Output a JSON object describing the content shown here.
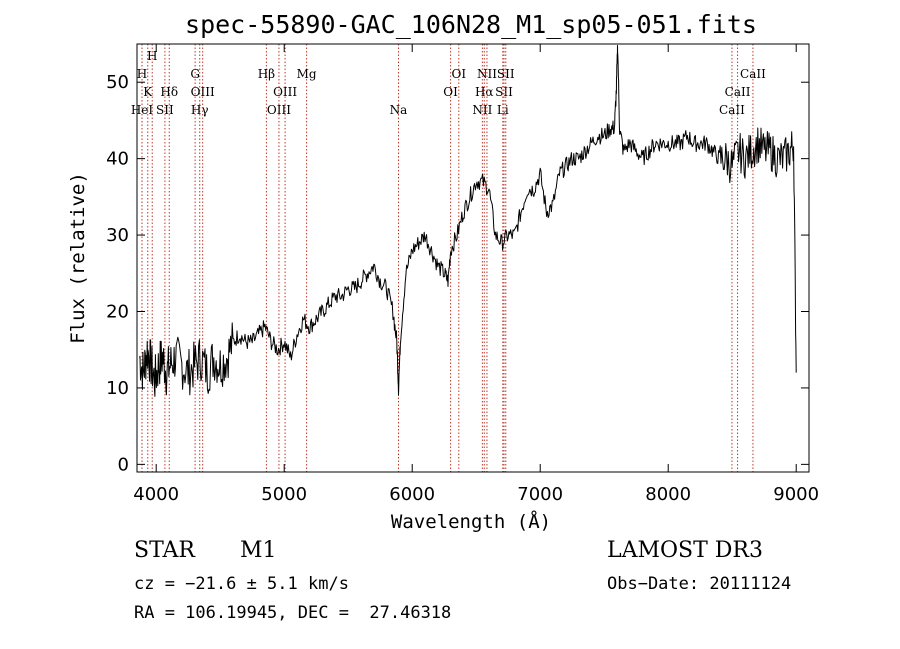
{
  "chart_data": {
    "type": "line",
    "title": "spec-55890-GAC_106N28_M1_sp05-051.fits",
    "xlabel": "Wavelength (Å)",
    "ylabel": "Flux (relative)",
    "xlim": [
      3850,
      9100
    ],
    "ylim": [
      -1,
      55
    ],
    "x_ticks": [
      4000,
      5000,
      6000,
      7000,
      8000,
      9000
    ],
    "y_ticks": [
      0,
      10,
      20,
      30,
      40,
      50
    ],
    "series": [
      {
        "name": "flux",
        "x": [
          3870,
          3900,
          3930,
          3960,
          3990,
          4020,
          4050,
          4080,
          4110,
          4150,
          4200,
          4250,
          4300,
          4350,
          4400,
          4450,
          4500,
          4550,
          4600,
          4650,
          4700,
          4750,
          4800,
          4850,
          4900,
          4950,
          5000,
          5050,
          5100,
          5150,
          5200,
          5250,
          5300,
          5350,
          5400,
          5450,
          5500,
          5550,
          5600,
          5650,
          5700,
          5750,
          5800,
          5850,
          5880,
          5893,
          5910,
          5950,
          6000,
          6050,
          6100,
          6150,
          6200,
          6250,
          6280,
          6300,
          6350,
          6400,
          6450,
          6500,
          6550,
          6600,
          6650,
          6700,
          6750,
          6800,
          6850,
          6900,
          6950,
          7000,
          7050,
          7100,
          7150,
          7200,
          7250,
          7300,
          7350,
          7400,
          7450,
          7500,
          7550,
          7580,
          7595,
          7605,
          7620,
          7650,
          7700,
          7750,
          7800,
          7850,
          7900,
          7950,
          8000,
          8050,
          8100,
          8150,
          8200,
          8250,
          8300,
          8350,
          8400,
          8450,
          8500,
          8550,
          8600,
          8650,
          8700,
          8750,
          8800,
          8850,
          8900,
          8950,
          8980,
          9000
        ],
        "y": [
          14,
          12,
          15,
          13,
          11,
          13,
          14,
          12,
          13,
          14,
          13,
          12,
          13,
          14,
          12,
          14,
          13,
          14,
          16,
          17,
          16,
          16,
          17,
          18,
          16,
          15,
          16,
          14,
          17,
          19,
          18,
          19,
          20,
          21,
          22,
          22,
          23,
          23,
          24,
          25,
          26,
          24,
          23,
          20,
          16,
          10,
          17,
          25,
          28,
          29,
          30,
          28,
          26,
          25,
          24,
          28,
          30,
          33,
          35,
          37,
          37,
          36,
          30,
          29,
          30,
          30,
          33,
          36,
          36,
          38,
          33,
          34,
          38,
          39,
          40,
          40,
          41,
          42,
          43,
          43,
          44,
          44,
          49,
          55,
          44,
          41,
          42,
          41,
          40,
          41,
          42,
          42,
          42,
          42,
          42,
          43,
          42,
          42,
          42,
          41,
          40,
          40,
          39,
          41,
          40,
          41,
          42,
          41,
          41,
          40,
          40,
          41,
          42,
          12
        ]
      }
    ],
    "line_markers": [
      {
        "wl": 3889,
        "labels": [
          {
            "text": "H",
            "row": 1
          }
        ]
      },
      {
        "wl": 3934,
        "labels": [
          {
            "text": "K",
            "row": 2
          }
        ]
      },
      {
        "wl": 3969,
        "labels": [
          {
            "text": "H",
            "row": 0
          }
        ]
      },
      {
        "wl": 3889,
        "labels": [
          {
            "text": "HeI",
            "row": 3
          }
        ]
      },
      {
        "wl": 4068,
        "labels": [
          {
            "text": "SII",
            "row": 3
          }
        ]
      },
      {
        "wl": 4102,
        "labels": [
          {
            "text": "Hδ",
            "row": 2
          }
        ]
      },
      {
        "wl": 4304,
        "labels": [
          {
            "text": "G",
            "row": 1
          }
        ]
      },
      {
        "wl": 4340,
        "labels": [
          {
            "text": "Hγ",
            "row": 3
          }
        ]
      },
      {
        "wl": 4363,
        "labels": [
          {
            "text": "OIII",
            "row": 2
          }
        ]
      },
      {
        "wl": 4861,
        "labels": [
          {
            "text": "Hβ",
            "row": 1
          }
        ]
      },
      {
        "wl": 4959,
        "labels": [
          {
            "text": "OIII",
            "row": 3
          }
        ]
      },
      {
        "wl": 5007,
        "labels": [
          {
            "text": "OIII",
            "row": 2
          }
        ]
      },
      {
        "wl": 5175,
        "labels": [
          {
            "text": "Mg",
            "row": 1
          }
        ]
      },
      {
        "wl": 5893,
        "labels": [
          {
            "text": "Na",
            "row": 3
          }
        ]
      },
      {
        "wl": 6300,
        "labels": [
          {
            "text": "OI",
            "row": 2
          }
        ]
      },
      {
        "wl": 6364,
        "labels": [
          {
            "text": "OI",
            "row": 1
          }
        ]
      },
      {
        "wl": 6548,
        "labels": [
          {
            "text": "NII",
            "row": 3
          }
        ]
      },
      {
        "wl": 6563,
        "labels": [
          {
            "text": "Hα",
            "row": 2
          }
        ]
      },
      {
        "wl": 6584,
        "labels": [
          {
            "text": "NII",
            "row": 1
          }
        ]
      },
      {
        "wl": 6708,
        "labels": [
          {
            "text": "Li",
            "row": 3
          }
        ]
      },
      {
        "wl": 6717,
        "labels": [
          {
            "text": "SII",
            "row": 2
          }
        ]
      },
      {
        "wl": 6731,
        "labels": [
          {
            "text": "SII",
            "row": 1
          }
        ]
      },
      {
        "wl": 8498,
        "labels": [
          {
            "text": "CaII",
            "row": 3
          }
        ]
      },
      {
        "wl": 8542,
        "labels": [
          {
            "text": "CaII",
            "row": 2
          }
        ]
      },
      {
        "wl": 8662,
        "labels": [
          {
            "text": "CaII",
            "row": 1
          }
        ]
      }
    ]
  },
  "footer": {
    "object_class": "STAR",
    "subclass": "M1",
    "survey": "LAMOST DR3",
    "cz": "cz = −21.6 ± 5.1 km/s",
    "obs_date": "Obs−Date: 20111124",
    "coords": "RA = 106.19945, DEC =  27.46318"
  },
  "colors": {
    "spectrum": "#000000",
    "line_markers": "#c0392b",
    "axes": "#000000"
  }
}
